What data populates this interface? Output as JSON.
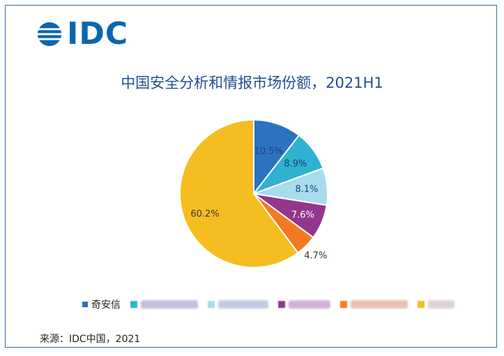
{
  "logo": {
    "text": "IDC"
  },
  "chart_data": {
    "type": "pie",
    "title": "中国安全分析和情报市场份额，2021H1",
    "slices": [
      {
        "name": "奇安信",
        "value": 10.5,
        "label": "10.5%",
        "color": "#2a73c0"
      },
      {
        "name": "",
        "value": 8.9,
        "label": "8.9%",
        "color": "#2eb2cf"
      },
      {
        "name": "",
        "value": 8.1,
        "label": "8.1%",
        "color": "#a7dcec"
      },
      {
        "name": "",
        "value": 7.6,
        "label": "7.6%",
        "color": "#93368c"
      },
      {
        "name": "",
        "value": 4.7,
        "label": "4.7%",
        "color": "#f47a20"
      },
      {
        "name": "",
        "value": 60.2,
        "label": "60.2%",
        "color": "#f5bd1f"
      }
    ]
  },
  "legend": {
    "first_label": "奇安信",
    "blurred_colors": [
      "#b8b3d9",
      "#b9c2dd",
      "#c8a6d1",
      "#e7b6a6",
      "#d9cbd8"
    ]
  },
  "source": "来源：IDC中国，2021"
}
